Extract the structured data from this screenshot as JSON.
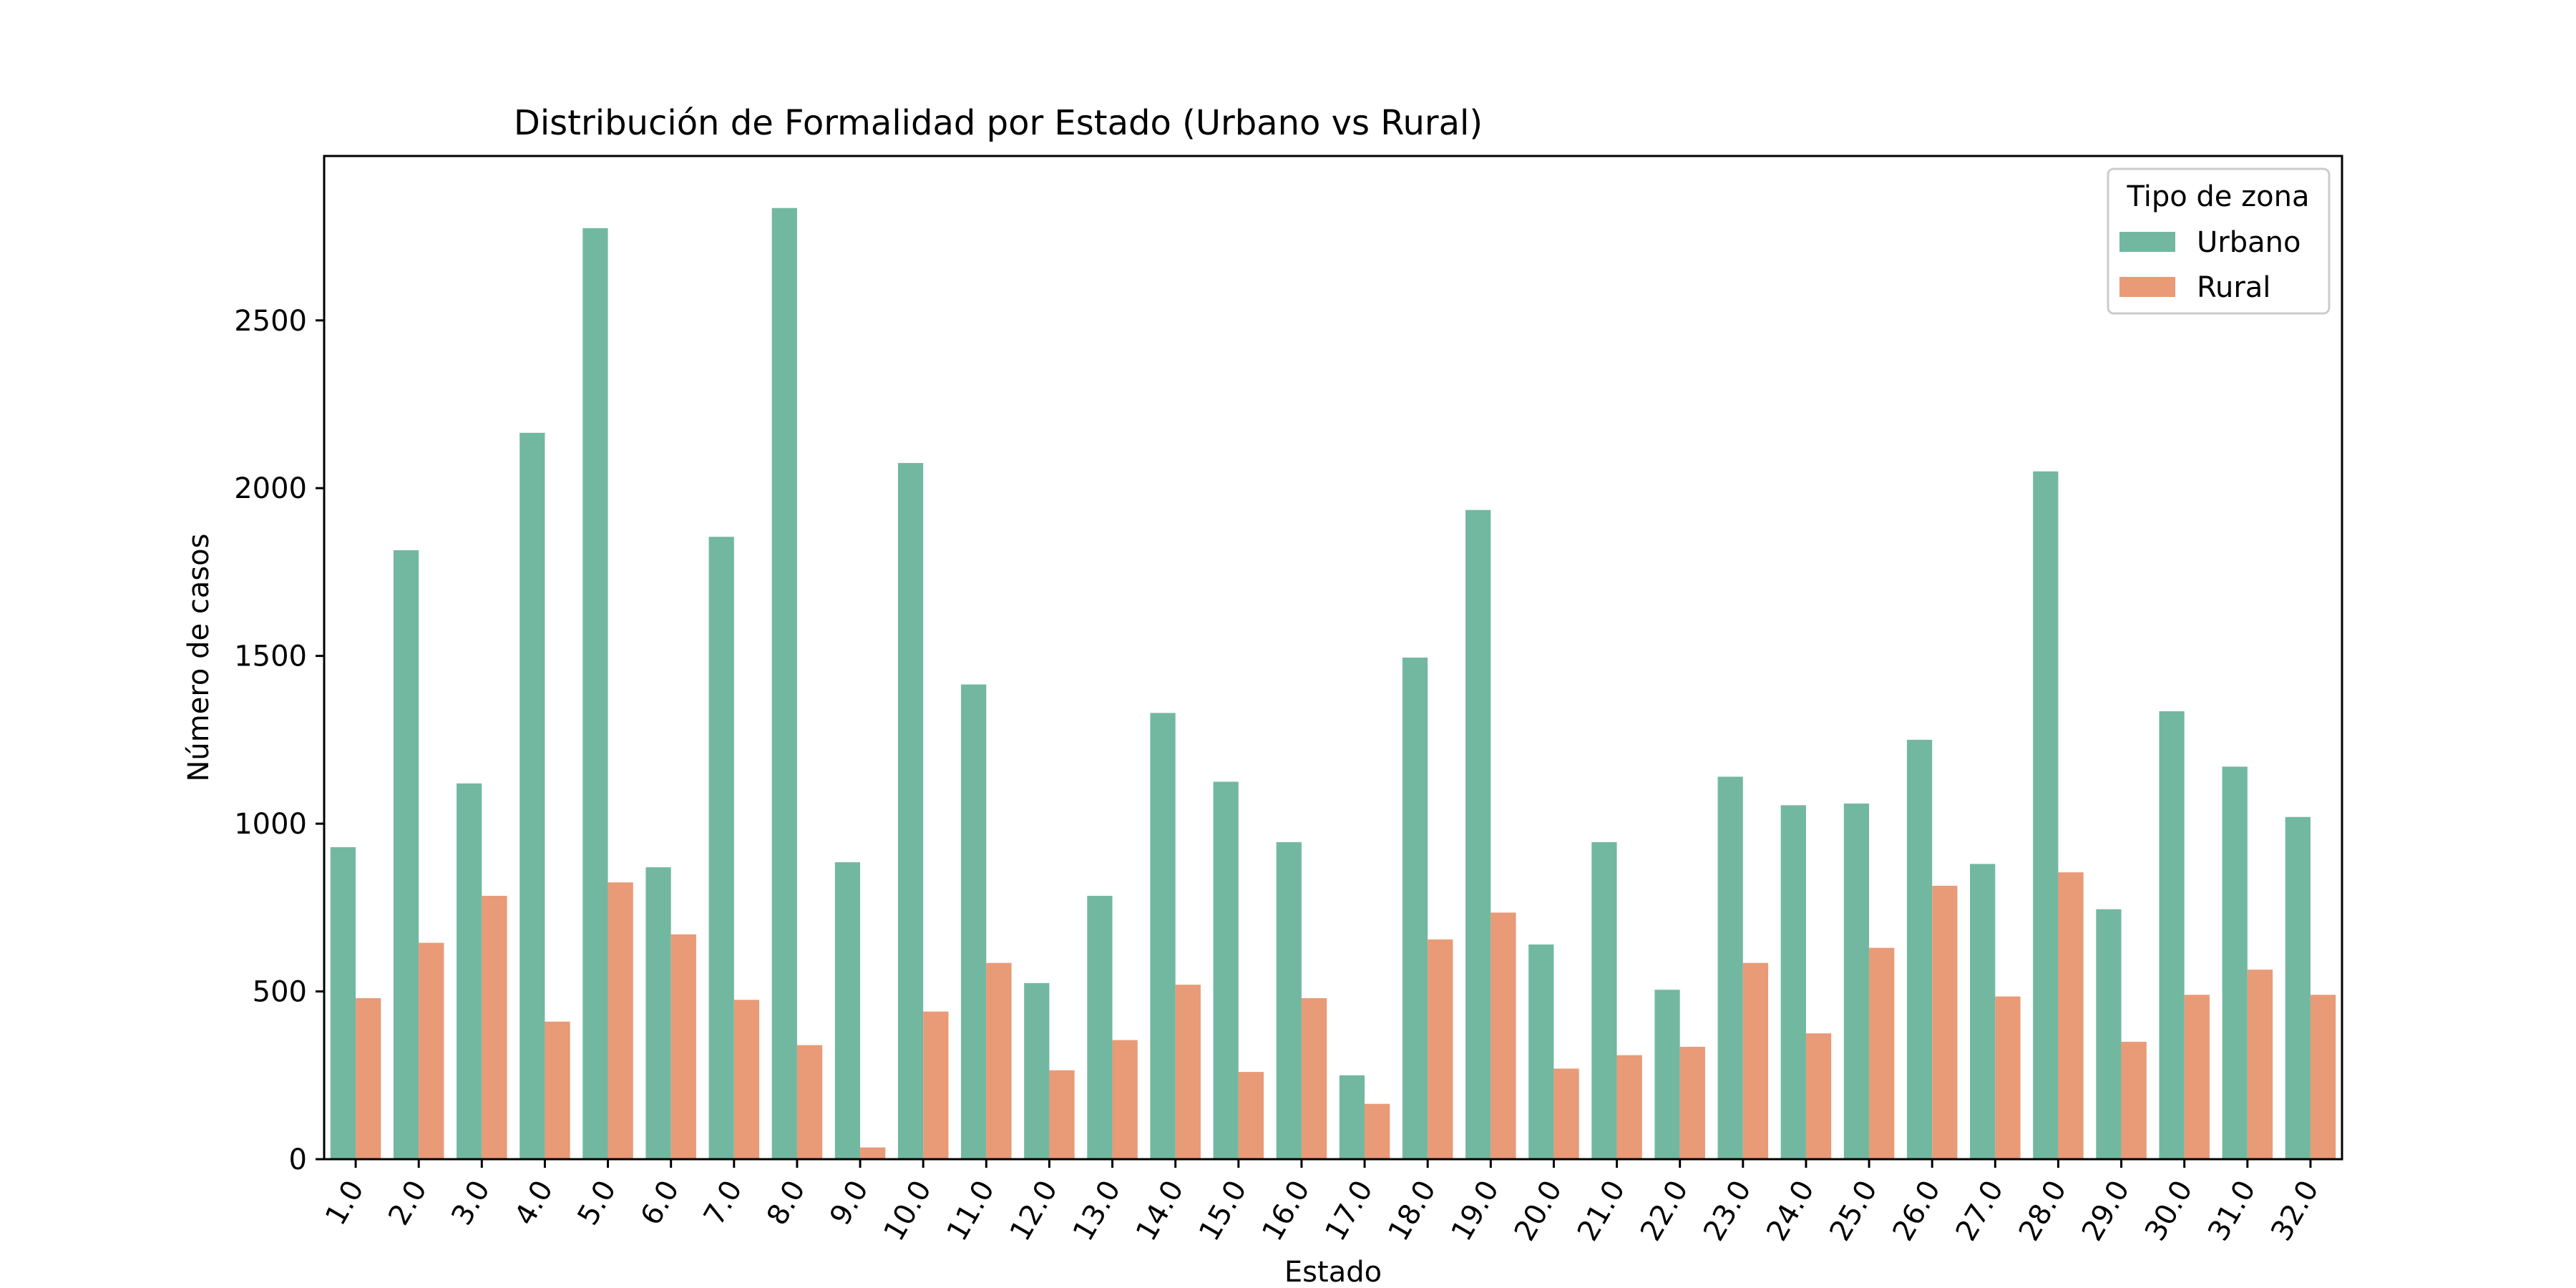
{
  "chart_data": {
    "type": "bar",
    "title": "Distribución de Formalidad por Estado (Urbano vs Rural)",
    "xlabel": "Estado",
    "ylabel": "Número de casos",
    "ylim": [
      0,
      2990
    ],
    "yticks": [
      0,
      500,
      1000,
      1500,
      2000,
      2500
    ],
    "grid": false,
    "legend": {
      "title": "Tipo de zona",
      "placement": "top-right"
    },
    "categories": [
      "1.0",
      "2.0",
      "3.0",
      "4.0",
      "5.0",
      "6.0",
      "7.0",
      "8.0",
      "9.0",
      "10.0",
      "11.0",
      "12.0",
      "13.0",
      "14.0",
      "15.0",
      "16.0",
      "17.0",
      "18.0",
      "19.0",
      "20.0",
      "21.0",
      "22.0",
      "23.0",
      "24.0",
      "25.0",
      "26.0",
      "27.0",
      "28.0",
      "29.0",
      "30.0",
      "31.0",
      "32.0"
    ],
    "series": [
      {
        "name": "Urbano",
        "color": "#72b8a0",
        "values": [
          930,
          1815,
          1120,
          2165,
          2775,
          870,
          1855,
          2835,
          885,
          2075,
          1415,
          525,
          785,
          1330,
          1125,
          945,
          250,
          1495,
          1935,
          640,
          945,
          505,
          1140,
          1055,
          1060,
          1250,
          880,
          2050,
          745,
          1335,
          1170,
          1020
        ]
      },
      {
        "name": "Rural",
        "color": "#e99a77",
        "values": [
          480,
          645,
          785,
          410,
          825,
          670,
          475,
          340,
          35,
          440,
          585,
          265,
          355,
          520,
          260,
          480,
          165,
          655,
          735,
          270,
          310,
          335,
          585,
          375,
          630,
          815,
          485,
          855,
          350,
          490,
          565,
          490
        ]
      }
    ]
  }
}
